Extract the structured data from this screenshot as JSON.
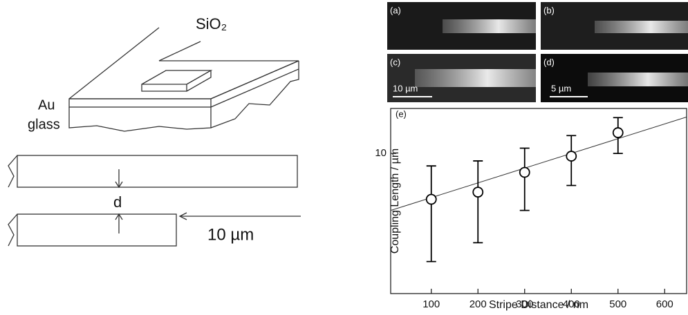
{
  "diagram": {
    "oxide": "SiO₂",
    "metal": "Au",
    "substrate": "glass",
    "gap": "d",
    "length": "10 µm"
  },
  "panels": [
    {
      "label": "(a)"
    },
    {
      "label": "(b)"
    },
    {
      "label": "(c)",
      "scale": "10 µm"
    },
    {
      "label": "(d)",
      "scale": "5 µm"
    }
  ],
  "chart_data": {
    "type": "scatter",
    "panel": "(e)",
    "x_label": "Stripe Distance / nm",
    "y_label": "Coupling Length / µm",
    "xlim": [
      13,
      647
    ],
    "ylim": [
      2.1,
      16.5
    ],
    "log_y": true,
    "xticks": [
      100,
      200,
      300,
      400,
      500,
      600
    ],
    "yticks": [
      10
    ],
    "series": [
      {
        "x": [
          100,
          200,
          300,
          400,
          500
        ],
        "values": [
          6.0,
          6.5,
          8.1,
          9.7,
          12.6
        ],
        "error_lower": [
          3.0,
          3.7,
          5.3,
          7.0,
          10.0
        ],
        "error_upper": [
          8.7,
          9.2,
          10.6,
          12.2,
          14.9
        ],
        "color": "#000000"
      }
    ],
    "fit": {
      "x": [
        13,
        647
      ],
      "values": [
        5.3,
        15.0
      ]
    }
  }
}
